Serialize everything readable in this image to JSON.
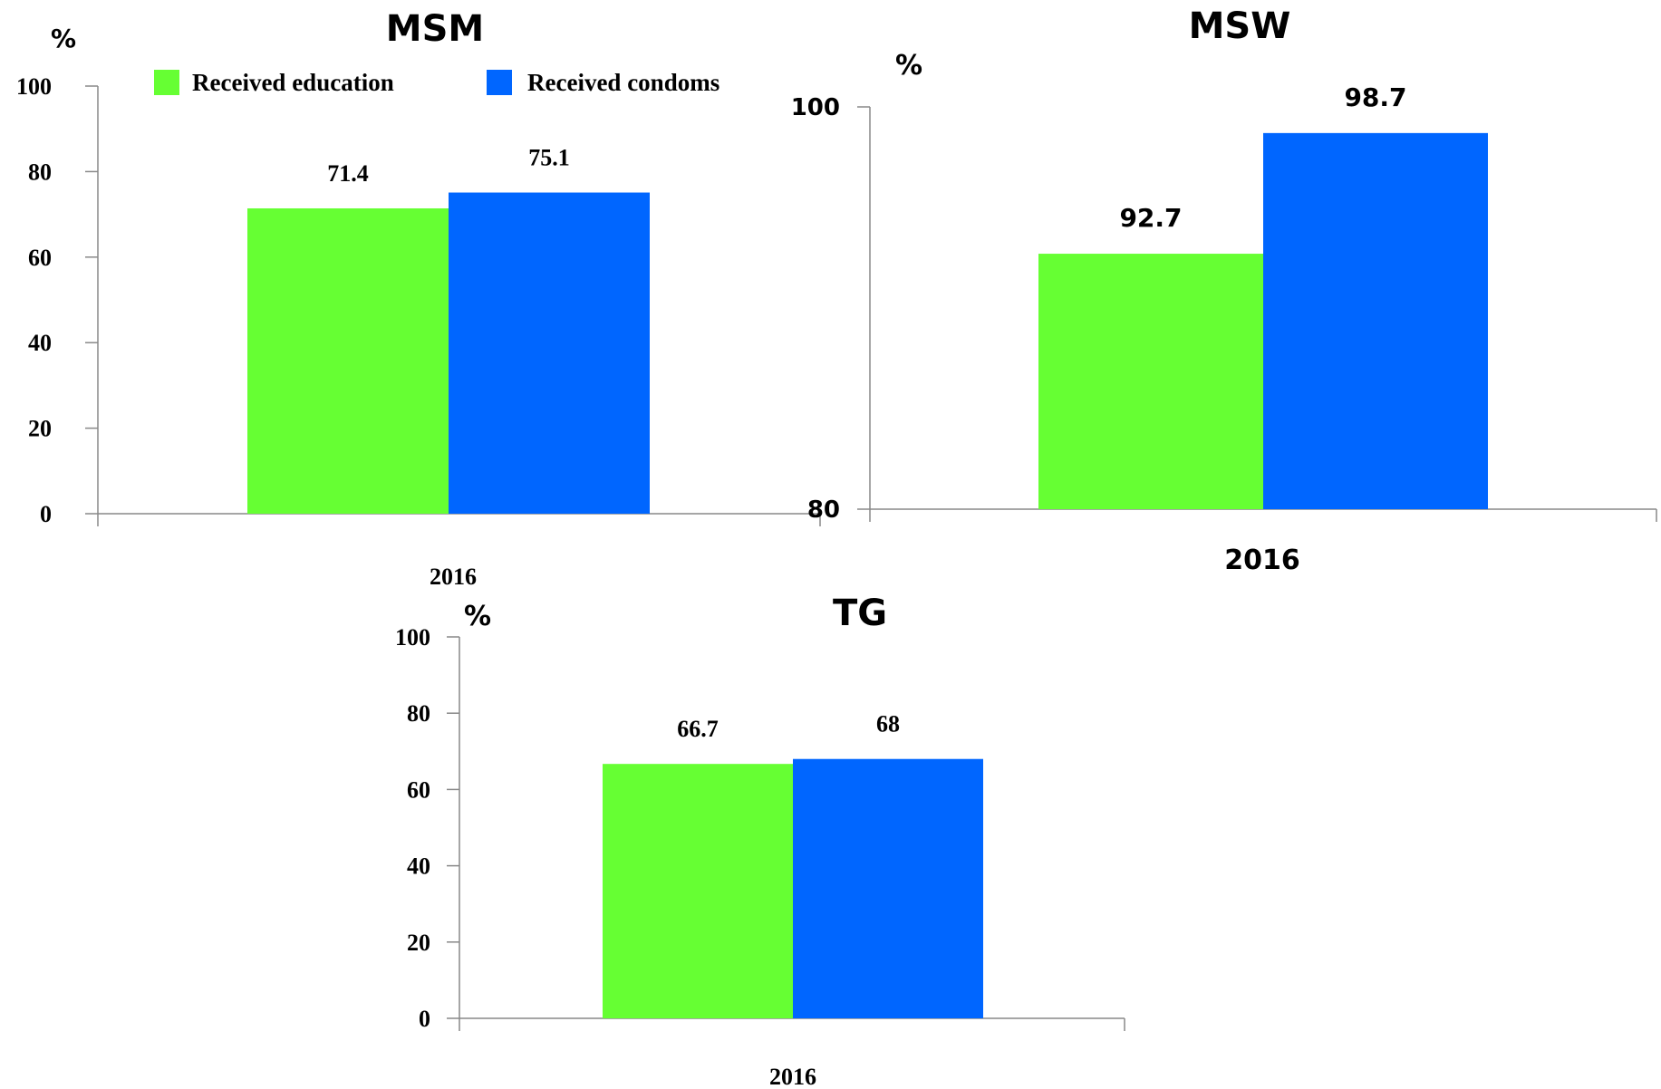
{
  "legend": [
    {
      "label": "Received education",
      "color": "#66FF33"
    },
    {
      "label": "Received condoms",
      "color": "#0066FF"
    }
  ],
  "chart_data": [
    {
      "type": "bar",
      "title": "MSM",
      "ylabel": "%",
      "categories": [
        "2016"
      ],
      "ylim": [
        0,
        100
      ],
      "yticks": [
        0,
        20,
        40,
        60,
        80,
        100
      ],
      "series": [
        {
          "name": "Received education",
          "values": [
            71.4
          ],
          "labels": [
            "71.4"
          ],
          "color": "#66FF33"
        },
        {
          "name": "Received condoms",
          "values": [
            75.1
          ],
          "labels": [
            "75.1"
          ],
          "color": "#0066FF"
        }
      ],
      "legend_position": "top"
    },
    {
      "type": "bar",
      "title": "MSW",
      "ylabel": "%",
      "categories": [
        "2016"
      ],
      "ylim": [
        80,
        100
      ],
      "yticks": [
        80,
        100
      ],
      "series": [
        {
          "name": "Received education",
          "values": [
            92.7
          ],
          "labels": [
            "92.7"
          ],
          "color": "#66FF33"
        },
        {
          "name": "Received condoms",
          "values": [
            98.7
          ],
          "labels": [
            "98.7"
          ],
          "color": "#0066FF"
        }
      ]
    },
    {
      "type": "bar",
      "title": "TG",
      "ylabel": "%",
      "categories": [
        "2016"
      ],
      "ylim": [
        0,
        100
      ],
      "yticks": [
        0,
        20,
        40,
        60,
        80,
        100
      ],
      "series": [
        {
          "name": "Received education",
          "values": [
            66.7
          ],
          "labels": [
            "66.7"
          ],
          "color": "#66FF33"
        },
        {
          "name": "Received condoms",
          "values": [
            68
          ],
          "labels": [
            "68"
          ],
          "color": "#0066FF"
        }
      ]
    }
  ]
}
